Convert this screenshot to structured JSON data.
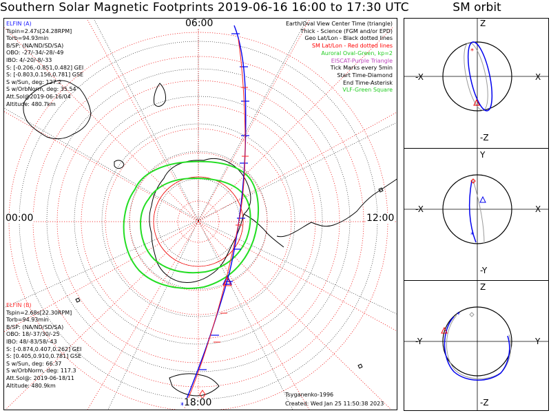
{
  "title": "Southern Solar Magnetic Footprints 2019-06-16 16:00 to 17:30 UTC",
  "sm_orbit_title": "SM orbit",
  "hour_labels": {
    "top": "06:00",
    "left": "00:00",
    "right": "12:00",
    "bottom": "18:00"
  },
  "elfin_a": {
    "name": "ELFIN (A)",
    "color": "#1a1aff",
    "lines": [
      "Tspin=2.47s[24.28RPM]",
      "Torb=94.93min",
      "B/SP: (NA/ND/SD/SA)",
      "OBO: -27/-34/-28/-49",
      "IBO: 4/-20/-8/-33",
      "S: [-0.206,-0.851,0.482] GEI",
      "S: [-0.803,0.156,0.781] GSE",
      "S w/Sun, deg: 127.2",
      "S w/OrbNorm, deg: 35.54",
      "Att.Sol@2019-06-16/04",
      "Altitude: 480.7km"
    ]
  },
  "elfin_b": {
    "name": "ELFIN (B)",
    "color": "#ff3333",
    "lines": [
      "Tspin=2.68s[22.30RPM]",
      "Torb=94.93min",
      "B/SP: (NA/ND/SD/SA)",
      "OBO: 18/-37/30/-25",
      "IBO: 48/-83/58/-43",
      "S: [-0.874,0.407,0.262] GEI",
      "S: [0.405,0.910,0.781] GSE",
      "S w/Sun, deg: 66.37",
      "S w/OrbNorm, deg: 117.3",
      "Att.Sol@: 2019-06-18/11",
      "Altitude: 480.9km"
    ]
  },
  "legend": [
    {
      "text": "Earth/Oval View Center Time (triangle)",
      "color": "#000000"
    },
    {
      "text": "Thick - Science (FGM and/or EPD)",
      "color": "#000000"
    },
    {
      "text": "Geo Lat/Lon - Black dotted lines",
      "color": "#000000"
    },
    {
      "text": "SM Lat/Lon - Red dotted lines",
      "color": "#ff0000"
    },
    {
      "text": "Auroral Oval-Green, kp=2",
      "color": "#22cc22"
    },
    {
      "text": "EISCAT-Purple Triangle",
      "color": "#bb44bb"
    },
    {
      "text": "Tick Marks every 5min",
      "color": "#000000"
    },
    {
      "text": "Start Time-Diamond",
      "color": "#000000"
    },
    {
      "text": "End Time-Asterisk",
      "color": "#000000"
    },
    {
      "text": "VLF-Green Square",
      "color": "#22cc22"
    }
  ],
  "credits": {
    "author": "Tsyganenko-1996",
    "created": "Created: Wed Jan 25 11:50:38 2023"
  },
  "orbit_panels": [
    {
      "top": "Z",
      "bottom": "-Z",
      "left": "-X",
      "right": "X"
    },
    {
      "top": "Y",
      "bottom": "-Y",
      "left": "-X",
      "right": "X"
    },
    {
      "top": "Z",
      "bottom": "-Z",
      "left": "-Y",
      "right": "Y"
    }
  ],
  "colors": {
    "elfin_a_track": "#0000ee",
    "elfin_b_track": "#ff2020",
    "auroral_oval": "#22dd22",
    "sm_grid": "#ee0000",
    "geo_grid": "#000000",
    "orbit_gray": "#999999"
  }
}
